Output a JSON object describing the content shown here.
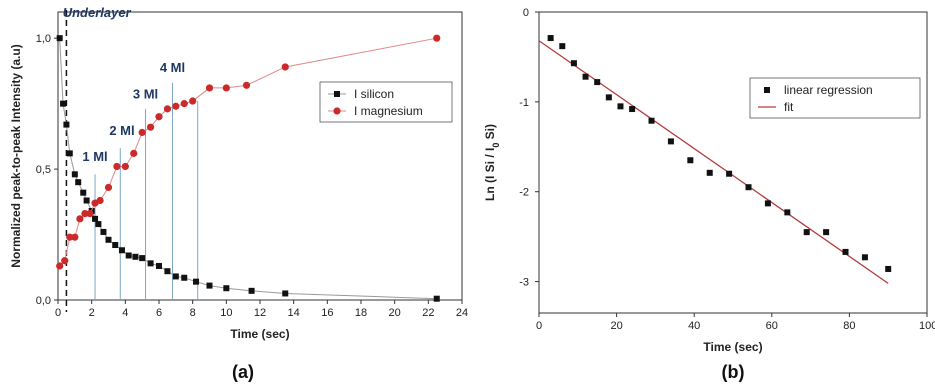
{
  "chart_data": [
    {
      "type": "scatter",
      "panel_label": "(a)",
      "xlabel": "Time (sec)",
      "ylabel": "Normalized peak-to-peak Intensity (a.u)",
      "xlim": [
        0,
        240
      ],
      "ylim": [
        0,
        1.1
      ],
      "xticks": [
        "0",
        "2",
        "4",
        "6",
        "8",
        "10",
        "12",
        "14",
        "16",
        "18",
        "20",
        "22",
        "24"
      ],
      "xtick_values": [
        0,
        20,
        40,
        60,
        80,
        100,
        120,
        140,
        160,
        180,
        200,
        220,
        240
      ],
      "yticks": [
        "0,0",
        "0,5",
        "1,0"
      ],
      "ytick_values": [
        0,
        0.5,
        1.0
      ],
      "legend_position": "upper-right",
      "series": [
        {
          "name": "I silicon",
          "marker": "square",
          "color": "#111111",
          "x": [
            1,
            3,
            5,
            7,
            10,
            12,
            15,
            17,
            20,
            22,
            24,
            27,
            30,
            34,
            38,
            42,
            46,
            50,
            55,
            60,
            65,
            70,
            75,
            82,
            90,
            100,
            115,
            135,
            225
          ],
          "y": [
            1.0,
            0.75,
            0.67,
            0.56,
            0.48,
            0.45,
            0.41,
            0.38,
            0.34,
            0.31,
            0.29,
            0.26,
            0.23,
            0.21,
            0.19,
            0.17,
            0.165,
            0.16,
            0.14,
            0.13,
            0.11,
            0.09,
            0.085,
            0.07,
            0.055,
            0.045,
            0.035,
            0.025,
            0.005
          ]
        },
        {
          "name": "I magnesium",
          "marker": "circle",
          "color": "#cc2a2a",
          "x": [
            1,
            4,
            7,
            10,
            13,
            16,
            19,
            22,
            25,
            30,
            35,
            40,
            45,
            50,
            55,
            60,
            65,
            70,
            75,
            80,
            90,
            100,
            112,
            135,
            225
          ],
          "y": [
            0.13,
            0.15,
            0.24,
            0.24,
            0.31,
            0.33,
            0.33,
            0.37,
            0.38,
            0.43,
            0.51,
            0.51,
            0.56,
            0.64,
            0.66,
            0.7,
            0.73,
            0.74,
            0.75,
            0.76,
            0.81,
            0.81,
            0.82,
            0.89,
            1.0
          ]
        }
      ],
      "annotations": [
        {
          "text": "Underlayer",
          "x": 4,
          "y": 1.08
        },
        {
          "text": "1 Ml",
          "x": 22,
          "y": 0.53
        },
        {
          "text": "2 Ml",
          "x": 38,
          "y": 0.63
        },
        {
          "text": "3 Ml",
          "x": 52,
          "y": 0.77
        },
        {
          "text": "4 Ml",
          "x": 68,
          "y": 0.87
        }
      ],
      "dashed_vline_x": 5,
      "vlines_x": [
        22,
        37,
        52,
        68,
        83
      ],
      "vlines_top": [
        0.48,
        0.58,
        0.73,
        0.83,
        0.76
      ]
    },
    {
      "type": "scatter",
      "panel_label": "(b)",
      "xlabel": "Time (sec)",
      "ylabel_main": "Ln (I Si / I",
      "ylabel_sub": "0",
      "ylabel_end": " Si)",
      "xlim": [
        0,
        100
      ],
      "ylim": [
        -3.35,
        0
      ],
      "xticks": [
        "0",
        "20",
        "40",
        "60",
        "80",
        "100"
      ],
      "xtick_values": [
        0,
        20,
        40,
        60,
        80,
        100
      ],
      "yticks": [
        "0",
        "-1",
        "-2",
        "-3"
      ],
      "ytick_values": [
        0,
        -1,
        -2,
        -3
      ],
      "legend_position": "upper-right",
      "series": [
        {
          "name": "linear regression",
          "marker": "square",
          "color": "#111111",
          "x": [
            3,
            6,
            9,
            12,
            15,
            18,
            21,
            24,
            29,
            34,
            39,
            44,
            49,
            54,
            59,
            64,
            69,
            74,
            79,
            84,
            90
          ],
          "y": [
            -0.29,
            -0.38,
            -0.57,
            -0.72,
            -0.78,
            -0.95,
            -1.05,
            -1.08,
            -1.21,
            -1.44,
            -1.65,
            -1.79,
            -1.8,
            -1.95,
            -2.13,
            -2.23,
            -2.45,
            -2.45,
            -2.67,
            -2.73,
            -2.86
          ]
        },
        {
          "name": "fit",
          "type": "line",
          "color": "#b33a3a",
          "x": [
            0,
            90
          ],
          "y": [
            -0.32,
            -3.02
          ]
        }
      ]
    }
  ]
}
